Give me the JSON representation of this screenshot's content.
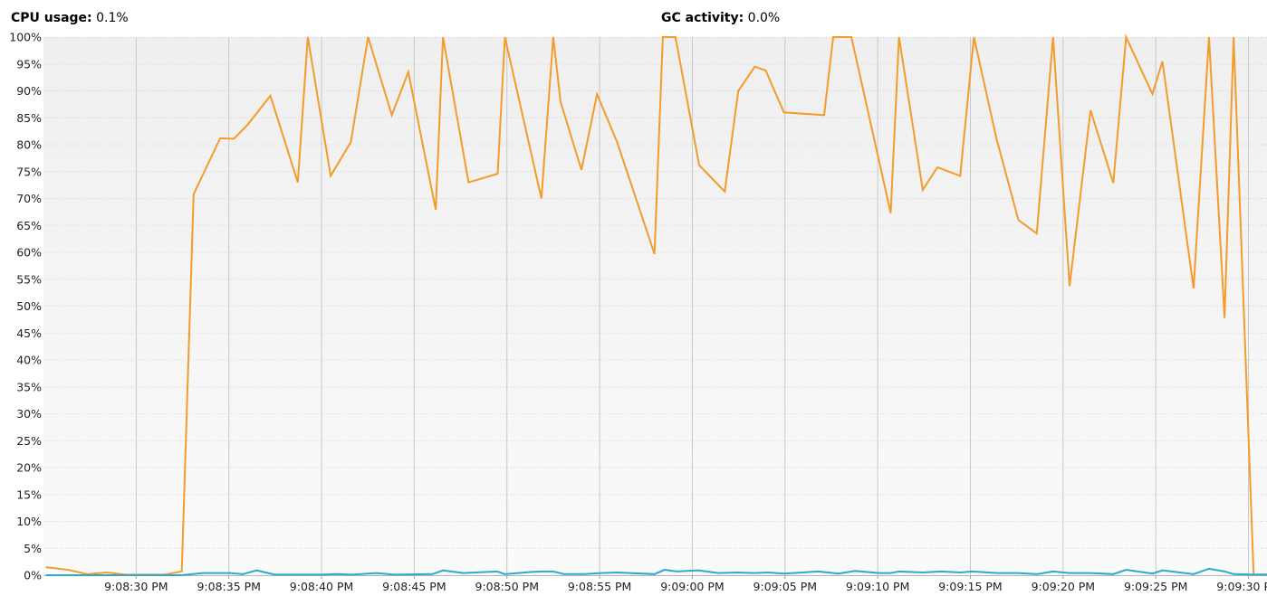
{
  "legend": {
    "cpu_label": "CPU usage:",
    "cpu_value": "0.1%",
    "gc_label": "GC activity:",
    "gc_value": "0.0%"
  },
  "colors": {
    "cpu": "#f39c2b",
    "gc": "#2ea8d1",
    "grid_major": "#c8c8c8",
    "grid_minor": "#d6d6d6",
    "bg_top": "#efefef",
    "bg_bottom": "#fafafa"
  },
  "chart_data": {
    "type": "line",
    "x_unit": "seconds",
    "xlim": [
      "9:08:25 PM",
      "9:09:31 PM"
    ],
    "ylim": [
      0,
      100
    ],
    "y_ticks": [
      "0%",
      "5%",
      "10%",
      "15%",
      "20%",
      "25%",
      "30%",
      "35%",
      "40%",
      "45%",
      "50%",
      "55%",
      "60%",
      "65%",
      "70%",
      "75%",
      "80%",
      "85%",
      "90%",
      "95%",
      "100%"
    ],
    "x_ticks": [
      {
        "t": "9:08:30 PM",
        "label": "9:08:30 PM"
      },
      {
        "t": "9:08:35 PM",
        "label": "9:08:35 PM"
      },
      {
        "t": "9:08:40 PM",
        "label": "9:08:40 PM"
      },
      {
        "t": "9:08:45 PM",
        "label": "9:08:45 PM"
      },
      {
        "t": "9:08:50 PM",
        "label": "9:08:50 PM"
      },
      {
        "t": "9:08:55 PM",
        "label": "9:08:55 PM"
      },
      {
        "t": "9:09:00 PM",
        "label": "9:09:00 PM"
      },
      {
        "t": "9:09:05 PM",
        "label": "9:09:05 PM"
      },
      {
        "t": "9:09:10 PM",
        "label": "9:09:10 PM"
      },
      {
        "t": "9:09:15 PM",
        "label": "9:09:15 PM"
      },
      {
        "t": "9:09:20 PM",
        "label": "9:09:20 PM"
      },
      {
        "t": "9:09:25 PM",
        "label": "9:09:25 PM"
      },
      {
        "t": "9:09:30 PM",
        "label": "9:09:30 PM"
      }
    ],
    "grid": true,
    "series": [
      {
        "name": "CPU usage",
        "points": [
          [
            "9:08:25.13 PM",
            1.5
          ],
          [
            "9:08:26.33 PM",
            1.0
          ],
          [
            "9:08:27.36 PM",
            0.2
          ],
          [
            "9:08:28.41 PM",
            0.5
          ],
          [
            "9:08:29.45 PM",
            0.1
          ],
          [
            "9:08:30.49 PM",
            0.1
          ],
          [
            "9:08:31.52 PM",
            0.1
          ],
          [
            "9:08:32.46 PM",
            0.7
          ],
          [
            "9:08:33.10 PM",
            70.8
          ],
          [
            "9:08:34.53 PM",
            81.2
          ],
          [
            "9:08:35.27 PM",
            81.1
          ],
          [
            "9:08:36.01 PM",
            83.7
          ],
          [
            "9:08:37.24 PM",
            89.1
          ],
          [
            "9:08:38.72 PM",
            73.0
          ],
          [
            "9:08:39.26 PM",
            100
          ],
          [
            "9:08:40.49 PM",
            74.2
          ],
          [
            "9:08:41.58 PM",
            80.5
          ],
          [
            "9:08:42.51 PM",
            100
          ],
          [
            "9:08:43.79 PM",
            85.5
          ],
          [
            "9:08:44.68 PM",
            93.5
          ],
          [
            "9:08:46.16 PM",
            67.9
          ],
          [
            "9:08:46.55 PM",
            100
          ],
          [
            "9:08:47.93 PM",
            73.0
          ],
          [
            "9:08:49.50 PM",
            74.6
          ],
          [
            "9:08:49.89 PM",
            100
          ],
          [
            "9:08:51.86 PM",
            70.0
          ],
          [
            "9:08:52.50 PM",
            100
          ],
          [
            "9:08:52.89 PM",
            88.0
          ],
          [
            "9:08:54.02 PM",
            75.3
          ],
          [
            "9:08:54.86 PM",
            89.4
          ],
          [
            "9:08:55.94 PM",
            80.5
          ],
          [
            "9:08:57.96 PM",
            59.7
          ],
          [
            "9:08:58.41 PM",
            100
          ],
          [
            "9:08:59.09 PM",
            100
          ],
          [
            "9:09:00.37 PM",
            76.2
          ],
          [
            "9:09:01.75 PM",
            71.3
          ],
          [
            "9:09:02.48 PM",
            90.0
          ],
          [
            "9:09:03.37 PM",
            94.5
          ],
          [
            "9:09:03.96 PM",
            93.8
          ],
          [
            "9:09:04.94 PM",
            86.0
          ],
          [
            "9:09:07.11 PM",
            85.5
          ],
          [
            "9:09:07.60 PM",
            100
          ],
          [
            "9:09:08.58 PM",
            100
          ],
          [
            "9:09:10.70 PM",
            67.3
          ],
          [
            "9:09:11.15 PM",
            100
          ],
          [
            "9:09:12.43 PM",
            71.6
          ],
          [
            "9:09:13.22 PM",
            75.8
          ],
          [
            "9:09:14.45 PM",
            74.2
          ],
          [
            "9:09:15.19 PM",
            100
          ],
          [
            "9:09:16.41 PM",
            81.1
          ],
          [
            "9:09:17.59 PM",
            66.0
          ],
          [
            "9:09:18.58 PM",
            63.5
          ],
          [
            "9:09:19.46 PM",
            100
          ],
          [
            "9:09:20.35 PM",
            53.7
          ],
          [
            "9:09:21.48 PM",
            86.4
          ],
          [
            "9:09:22.71 PM",
            72.9
          ],
          [
            "9:09:23.40 PM",
            100
          ],
          [
            "9:09:24.82 PM",
            89.4
          ],
          [
            "9:09:25.36 PM",
            95.5
          ],
          [
            "9:09:27.04 PM",
            53.3
          ],
          [
            "9:09:27.87 PM",
            100
          ],
          [
            "9:09:28.71 PM",
            47.8
          ],
          [
            "9:09:29.20 PM",
            100
          ],
          [
            "9:09:30.28 PM",
            0.1
          ],
          [
            "9:09:31.61 PM",
            0.2
          ],
          [
            "9:09:32.20 PM",
            0.5
          ]
        ]
      },
      {
        "name": "GC activity",
        "points": [
          [
            "9:08:25.13 PM",
            0
          ],
          [
            "9:08:32.46 PM",
            0
          ],
          [
            "9:08:33.59 PM",
            0.4
          ],
          [
            "9:08:35.07 PM",
            0.4
          ],
          [
            "9:08:35.76 PM",
            0.2
          ],
          [
            "9:08:36.49 PM",
            0.9
          ],
          [
            "9:08:37.48 PM",
            0.1
          ],
          [
            "9:08:39.94 PM",
            0.1
          ],
          [
            "9:08:40.87 PM",
            0.2
          ],
          [
            "9:08:41.71 PM",
            0.1
          ],
          [
            "9:08:42.94 PM",
            0.4
          ],
          [
            "9:08:43.92 PM",
            0.1
          ],
          [
            "9:08:45.99 PM",
            0.2
          ],
          [
            "9:08:46.55 PM",
            0.9
          ],
          [
            "9:08:47.63 PM",
            0.4
          ],
          [
            "9:08:49.46 PM",
            0.7
          ],
          [
            "9:08:49.89 PM",
            0.2
          ],
          [
            "9:08:51.32 PM",
            0.6
          ],
          [
            "9:08:51.96 PM",
            0.7
          ],
          [
            "9:08:52.50 PM",
            0.7
          ],
          [
            "9:08:53.07 PM",
            0.2
          ],
          [
            "9:08:54.16 PM",
            0.2
          ],
          [
            "9:08:55.10 PM",
            0.4
          ],
          [
            "9:08:55.93 PM",
            0.5
          ],
          [
            "9:08:57.96 PM",
            0.2
          ],
          [
            "9:08:58.50 PM",
            1.0
          ],
          [
            "9:08:59.19 PM",
            0.7
          ],
          [
            "9:09:00.32 PM",
            0.9
          ],
          [
            "9:09:01.40 PM",
            0.4
          ],
          [
            "9:09:02.43 PM",
            0.5
          ],
          [
            "9:09:03.32 PM",
            0.4
          ],
          [
            "9:09:04.11 PM",
            0.5
          ],
          [
            "9:09:04.94 PM",
            0.3
          ],
          [
            "9:09:06.81 PM",
            0.7
          ],
          [
            "9:09:07.90 PM",
            0.3
          ],
          [
            "9:09:08.78 PM",
            0.8
          ],
          [
            "9:09:10.06 PM",
            0.4
          ],
          [
            "9:09:10.70 PM",
            0.4
          ],
          [
            "9:09:11.15 PM",
            0.7
          ],
          [
            "9:09:12.43 PM",
            0.5
          ],
          [
            "9:09:13.41 PM",
            0.7
          ],
          [
            "9:09:14.45 PM",
            0.5
          ],
          [
            "9:09:15.09 PM",
            0.7
          ],
          [
            "9:09:16.46 PM",
            0.4
          ],
          [
            "9:09:17.59 PM",
            0.4
          ],
          [
            "9:09:18.58 PM",
            0.2
          ],
          [
            "9:09:19.46 PM",
            0.7
          ],
          [
            "9:09:20.35 PM",
            0.4
          ],
          [
            "9:09:21.48 PM",
            0.4
          ],
          [
            "9:09:22.71 PM",
            0.2
          ],
          [
            "9:09:23.40 PM",
            1.0
          ],
          [
            "9:09:24.82 PM",
            0.3
          ],
          [
            "9:09:25.36 PM",
            0.9
          ],
          [
            "9:09:27.04 PM",
            0.2
          ],
          [
            "9:09:27.87 PM",
            1.2
          ],
          [
            "9:09:28.71 PM",
            0.7
          ],
          [
            "9:09:29.20 PM",
            0.2
          ],
          [
            "9:09:30.28 PM",
            0.1
          ],
          [
            "9:09:32.20 PM",
            0.1
          ]
        ]
      }
    ]
  }
}
